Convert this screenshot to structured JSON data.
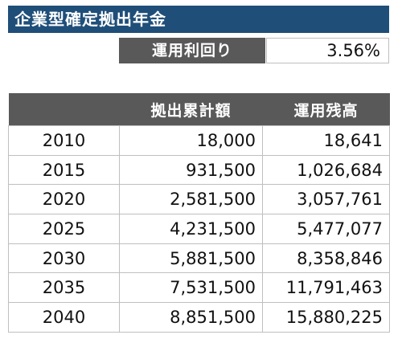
{
  "title": "企業型確定拠出年金",
  "rate": {
    "label": "運用利回り",
    "value": "3.56%"
  },
  "table": {
    "headers": [
      "",
      "拠出累計額",
      "運用残高"
    ],
    "rows": [
      {
        "year": "2010",
        "cumulative": "18,000",
        "balance": "18,641"
      },
      {
        "year": "2015",
        "cumulative": "931,500",
        "balance": "1,026,684"
      },
      {
        "year": "2020",
        "cumulative": "2,581,500",
        "balance": "3,057,761"
      },
      {
        "year": "2025",
        "cumulative": "4,231,500",
        "balance": "5,477,077"
      },
      {
        "year": "2030",
        "cumulative": "5,881,500",
        "balance": "8,358,846"
      },
      {
        "year": "2035",
        "cumulative": "7,531,500",
        "balance": "11,791,463"
      },
      {
        "year": "2040",
        "cumulative": "8,851,500",
        "balance": "15,880,225"
      }
    ]
  }
}
